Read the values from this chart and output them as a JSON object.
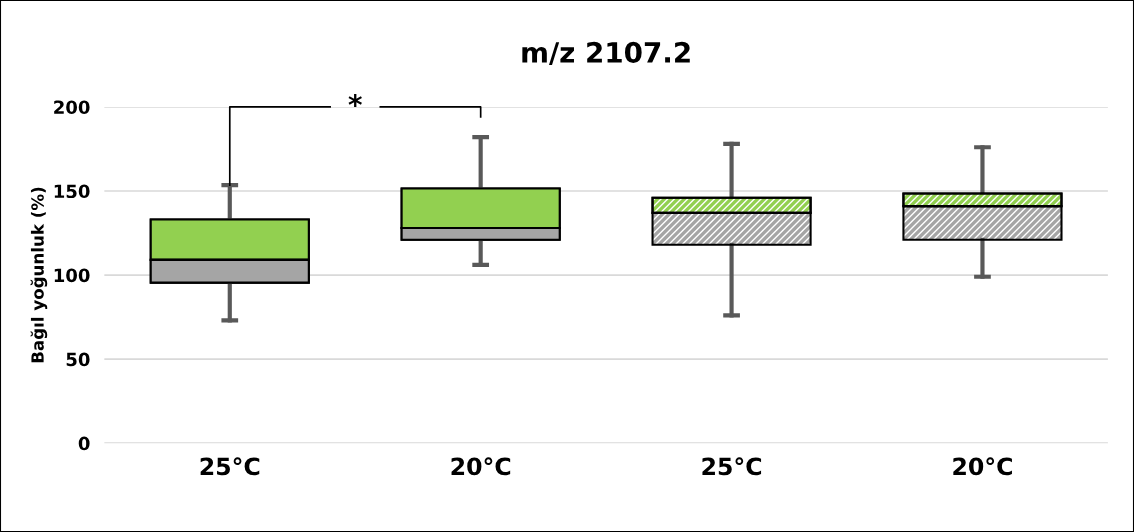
{
  "chart_data": {
    "type": "box",
    "title": "m/z 2107.2",
    "ylabel": "Bağıl yoğunluk (%)",
    "categories": [
      "25°C",
      "20°C",
      "25°C",
      "20°C"
    ],
    "boxes": [
      {
        "low": 73,
        "q1": 95.5,
        "median": 109,
        "q3": 133,
        "high": 153.5
      },
      {
        "low": 106,
        "q1": 121,
        "median": 128,
        "q3": 151.5,
        "high": 182
      },
      {
        "low": 76,
        "q1": 118,
        "median": 137,
        "q3": 146,
        "high": 178
      },
      {
        "low": 99,
        "q1": 121,
        "median": 141,
        "q3": 148.5,
        "high": 176
      }
    ],
    "colors": [
      "#92d050",
      "#92d050",
      "#a5a5a5",
      "#a5a5a5"
    ],
    "ylim": [
      0,
      200
    ],
    "yticks": [
      0,
      50,
      100,
      150,
      200
    ],
    "grid": "y",
    "annotations": [
      {
        "text": "*",
        "x": "25°C",
        "y": 153.5
      }
    ]
  }
}
